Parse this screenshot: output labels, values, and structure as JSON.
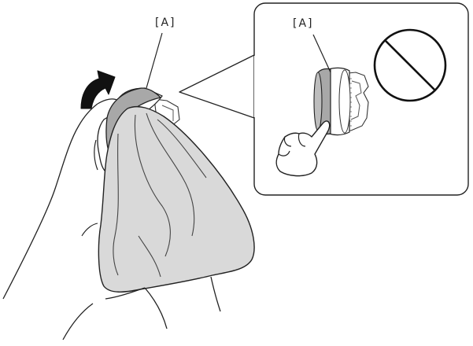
{
  "labels": {
    "main_part": "[A]",
    "inset_part": "[A]"
  },
  "icons": {
    "rotation_arrow": "curved-arrow-icon",
    "prohibition": "prohibited-icon",
    "pointing_hand": "pointing-hand-icon"
  },
  "colors": {
    "line": "#222222",
    "cloth_fill": "#d9d9d9",
    "roller_band": "#a8a8a8",
    "arrow_fill": "#111111",
    "background": "#ffffff"
  }
}
